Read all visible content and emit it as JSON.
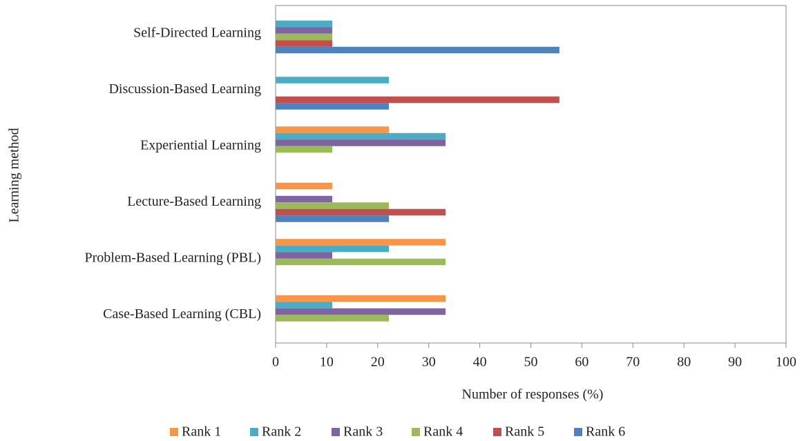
{
  "chart_data": {
    "type": "hbar",
    "x_label": "Number of responses (%)",
    "y_label": "Learning method",
    "categories": [
      "Self-Directed Learning",
      "Discussion-Based Learning",
      "Experiential Learning",
      "Lecture-Based Learning",
      "Problem-Based Learning (PBL)",
      "Case-Based Learning (CBL)"
    ],
    "series": [
      {
        "name": "Rank 1",
        "color": "#f79646",
        "values": [
          0,
          0,
          22.2,
          11.1,
          33.3,
          33.3
        ]
      },
      {
        "name": "Rank 2",
        "color": "#4bacc6",
        "values": [
          11.1,
          22.2,
          33.3,
          0,
          22.2,
          11.1
        ]
      },
      {
        "name": "Rank 3",
        "color": "#8064a2",
        "values": [
          11.1,
          0,
          33.3,
          11.1,
          11.1,
          33.3
        ]
      },
      {
        "name": "Rank 4",
        "color": "#9bbb59",
        "values": [
          11.1,
          0,
          11.1,
          22.2,
          33.3,
          22.2
        ]
      },
      {
        "name": "Rank 5",
        "color": "#c0504d",
        "values": [
          11.1,
          55.6,
          0,
          33.3,
          0,
          0
        ]
      },
      {
        "name": "Rank 6",
        "color": "#4f81bd",
        "values": [
          55.6,
          22.2,
          0,
          22.2,
          0,
          0
        ]
      }
    ],
    "xlim": [
      0,
      100
    ],
    "xticks": [
      0,
      10,
      20,
      30,
      40,
      50,
      60,
      70,
      80,
      90,
      100
    ],
    "legend": "bottom"
  }
}
